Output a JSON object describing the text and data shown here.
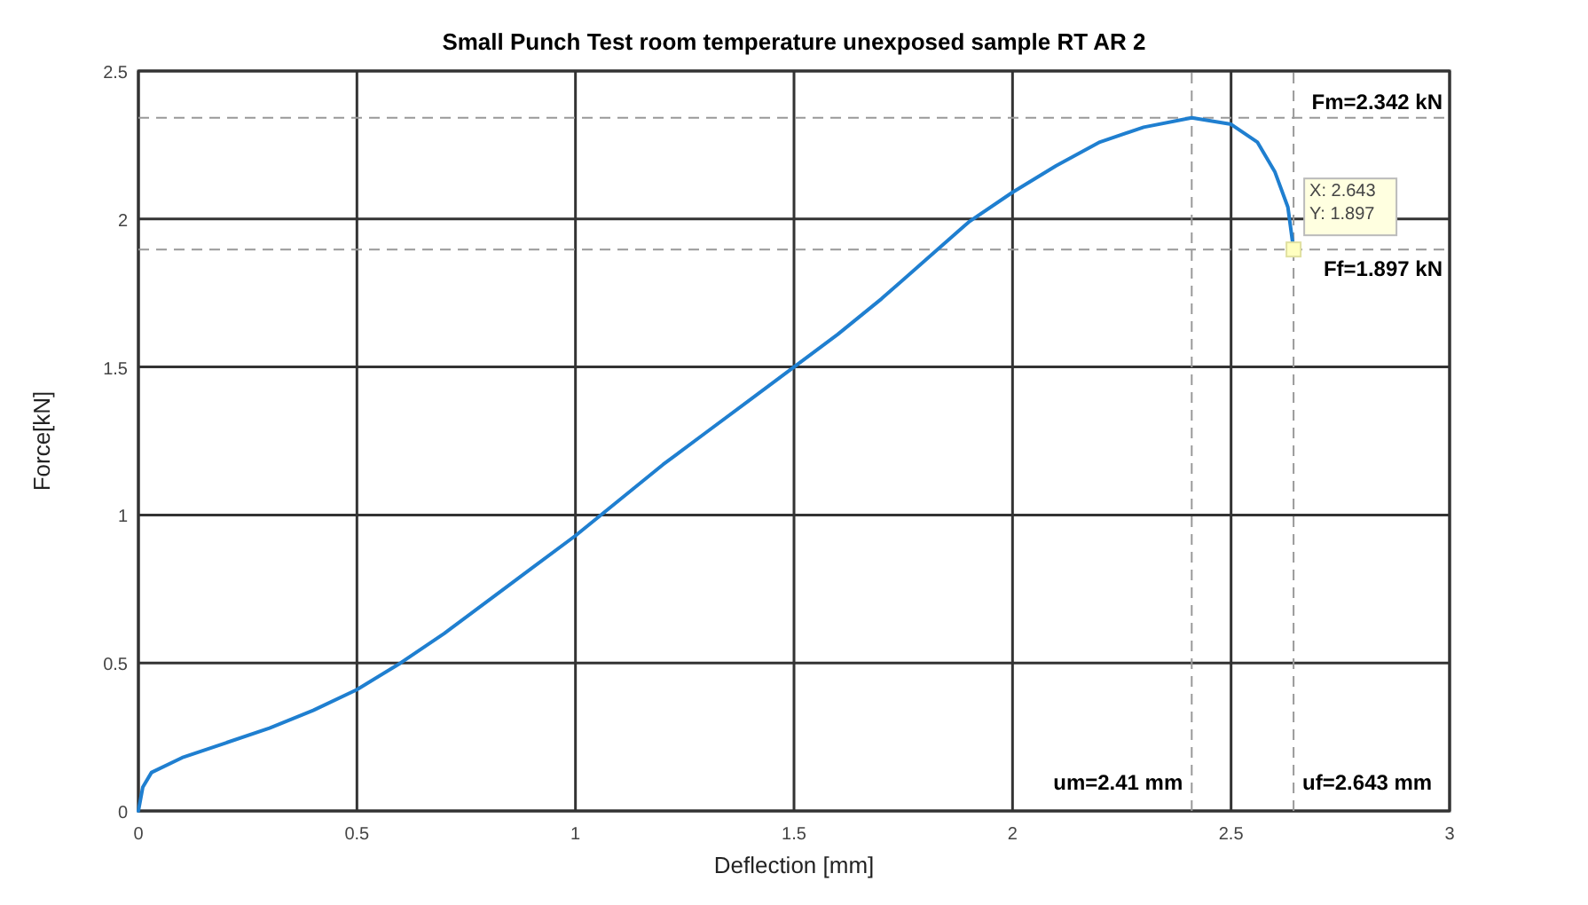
{
  "chart_data": {
    "type": "line",
    "title": "Small Punch Test room temperature unexposed sample RT AR 2",
    "xlabel": "Deflection [mm]",
    "ylabel": "Force[kN]",
    "xlim": [
      0,
      3
    ],
    "ylim": [
      0,
      2.5
    ],
    "xticks": [
      0,
      0.5,
      1,
      1.5,
      2,
      2.5,
      3
    ],
    "yticks": [
      0,
      0.5,
      1,
      1.5,
      2,
      2.5
    ],
    "grid": true,
    "marker": "none",
    "line_style": "solid",
    "series": [
      {
        "color": "#1f7fd0",
        "x": [
          0,
          0.01,
          0.03,
          0.1,
          0.2,
          0.3,
          0.4,
          0.5,
          0.6,
          0.7,
          0.8,
          0.9,
          1.0,
          1.1,
          1.2,
          1.3,
          1.4,
          1.5,
          1.6,
          1.7,
          1.8,
          1.9,
          2.0,
          2.1,
          2.2,
          2.3,
          2.41,
          2.5,
          2.56,
          2.6,
          2.63,
          2.643
        ],
        "values": [
          0,
          0.08,
          0.13,
          0.18,
          0.23,
          0.28,
          0.34,
          0.41,
          0.5,
          0.6,
          0.71,
          0.82,
          0.93,
          1.05,
          1.17,
          1.28,
          1.39,
          1.5,
          1.61,
          1.73,
          1.86,
          1.99,
          2.09,
          2.18,
          2.26,
          2.31,
          2.342,
          2.32,
          2.26,
          2.16,
          2.04,
          1.897
        ]
      }
    ],
    "ref_lines": [
      {
        "axis": "y",
        "value": 2.342,
        "label": "Fm=2.342 kN",
        "color": "#999999",
        "line_style": "dashed"
      },
      {
        "axis": "y",
        "value": 1.897,
        "label": "Ff=1.897 kN",
        "color": "#999999",
        "line_style": "dashed"
      },
      {
        "axis": "x",
        "value": 2.41,
        "label": "um=2.41 mm",
        "color": "#999999",
        "line_style": "dashed"
      },
      {
        "axis": "x",
        "value": 2.643,
        "label": "uf=2.643 mm",
        "color": "#999999",
        "line_style": "dashed"
      }
    ],
    "annotations": [
      {
        "text": "X: 2.643",
        "x": 2.643,
        "y": 1.897
      },
      {
        "text": "Y: 1.897",
        "x": 2.643,
        "y": 1.897
      }
    ]
  }
}
